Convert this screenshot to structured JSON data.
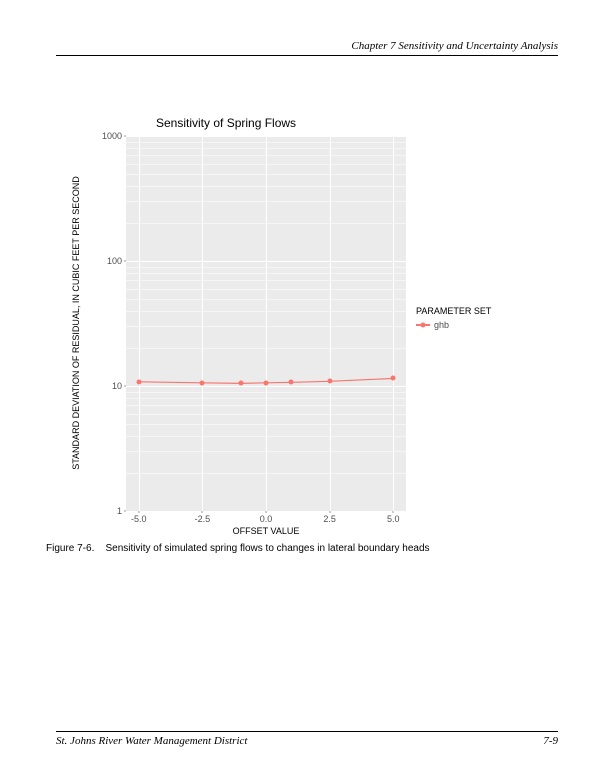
{
  "header": {
    "chapter": "Chapter 7  Sensitivity and Uncertainty Analysis"
  },
  "chart": {
    "type": "line",
    "title": "Sensitivity of Spring Flows",
    "y_axis_title": "STANDARD DEVIATION OF RESIDUAL, IN CUBIC FEET PER SECOND",
    "x_axis_title": "OFFSET VALUE",
    "background_color": "#ebebeb",
    "grid_major_color": "#ffffff",
    "grid_minor_color": "#f6f6f6",
    "yscale": "log",
    "ylim": [
      1,
      1000
    ],
    "ytick_labels": [
      "1",
      "10",
      "100",
      "1000"
    ],
    "ytick_values": [
      1,
      10,
      100,
      1000
    ],
    "xlim": [
      -5.5,
      5.5
    ],
    "xtick_labels": [
      "-5.0",
      "-2.5",
      "0.0",
      "2.5",
      "5.0"
    ],
    "xtick_values": [
      -5.0,
      -2.5,
      0.0,
      2.5,
      5.0
    ],
    "series": {
      "name": "ghb",
      "color": "#f8766d",
      "line_width": 1.2,
      "marker": "circle",
      "marker_size": 5,
      "x": [
        -5.0,
        -2.5,
        -1.0,
        0.0,
        1.0,
        2.5,
        5.0
      ],
      "y": [
        10.8,
        10.6,
        10.5,
        10.6,
        10.7,
        10.9,
        11.5
      ]
    },
    "legend": {
      "title": "PARAMETER SET",
      "items": [
        "ghb"
      ]
    }
  },
  "caption": {
    "label": "Figure 7-6.",
    "text": "Sensitivity of simulated spring flows to changes in lateral boundary heads"
  },
  "footer": {
    "org": "St. Johns River Water Management District",
    "page": "7-9"
  }
}
